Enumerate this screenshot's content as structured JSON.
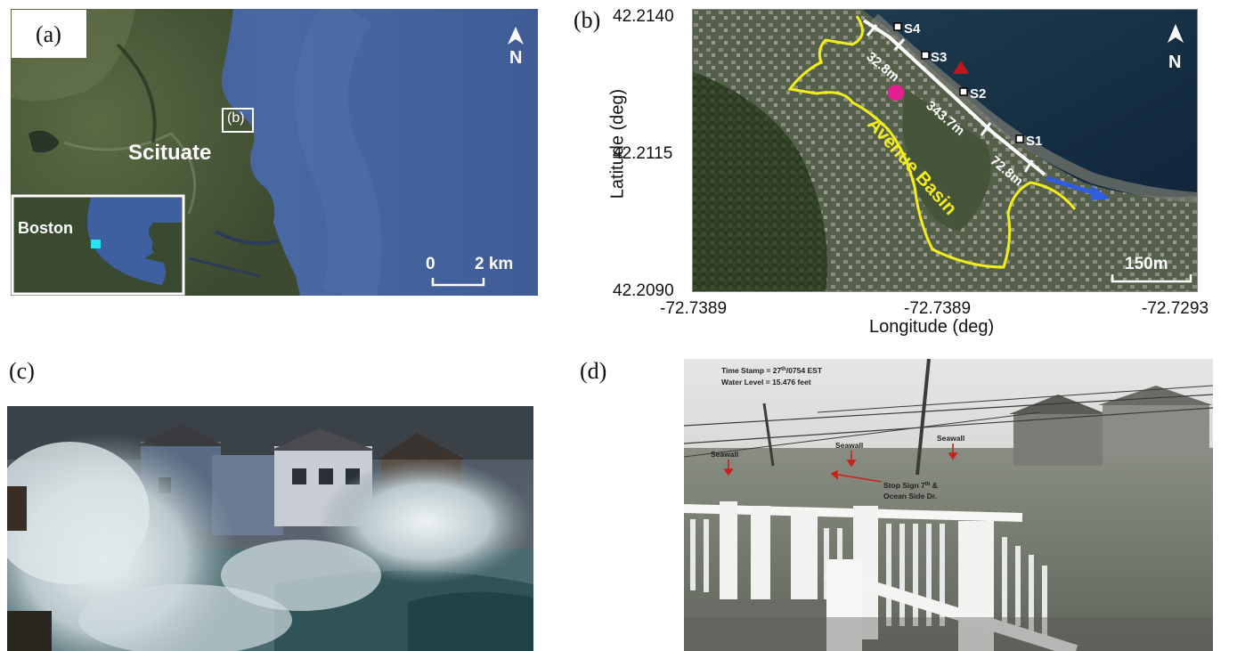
{
  "panels": {
    "a": {
      "letter": "(a)",
      "place_label": "Scituate",
      "inset_label": "Boston",
      "extent_label": "(b)",
      "north": "N",
      "scale_start": "0",
      "scale_end": "2 km"
    },
    "b": {
      "letter": "(b)",
      "north": "N",
      "basin_label": "Avenue Basin",
      "stations": [
        "S4",
        "S3",
        "S2",
        "S1"
      ],
      "segments": [
        "32.8m",
        "343.7m",
        "72.8m"
      ],
      "scale_label": "150m",
      "y_axis_label": "Latitude (deg)",
      "x_axis_label": "Longitude (deg)",
      "y_ticks": [
        "42.2140",
        "42.2115",
        "42.2090"
      ],
      "x_ticks": [
        "-72.7389",
        "-72.7389",
        "-72.7293"
      ]
    },
    "c": {
      "letter": "(c)"
    },
    "d": {
      "letter": "(d)",
      "timestamp_prefix": "Time Stamp = 27",
      "timestamp_sup": "th",
      "timestamp_suffix": "/0754 EST",
      "water_level": "Water Level = 15.476 feet",
      "seawall_labels": [
        "Seawall",
        "Seawall",
        "Seawall"
      ],
      "stop_sign_line1_prefix": "Stop Sign 7",
      "stop_sign_line1_sup": "th",
      "stop_sign_line1_suffix": " &",
      "stop_sign_line2": "Ocean Side Dr."
    }
  },
  "colors": {
    "ocean": "#3f5f9a",
    "land": "#4b5a3a",
    "basin_outline": "#f2ee1c",
    "seawall_line": "#ffffff",
    "marker_pink": "#e4208f",
    "marker_red": "#c0161a",
    "flow_arrow": "#2f5fe0",
    "inset_marker": "#29e2f2",
    "annotation_red": "#c8201a"
  }
}
